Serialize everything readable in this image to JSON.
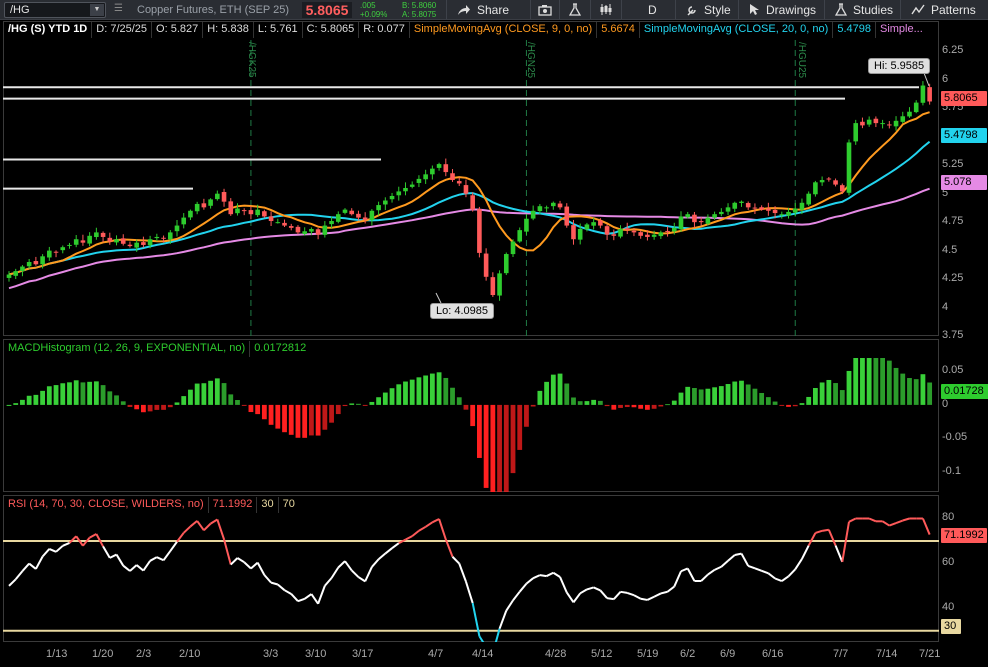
{
  "toolbar": {
    "symbol": "/HG",
    "description": "Copper Futures, ETH (SEP 25)",
    "last": "5.8065",
    "change": ".005",
    "change_pct": "+0.09%",
    "bid": "B: 5.8060",
    "ask": "A: 5.8075",
    "share_label": "Share",
    "aggregation": "D",
    "style_label": "Style",
    "drawings_label": "Drawings",
    "studies_label": "Studies",
    "patterns_label": "Patterns"
  },
  "price_header": {
    "title": "/HG (S) YTD 1D",
    "date": "D: 7/25/25",
    "open": "O: 5.827",
    "high": "H: 5.838",
    "low": "L: 5.761",
    "close": "C: 5.8065",
    "range": "R: 0.077",
    "sma9_label": "SimpleMovingAvg (CLOSE, 9, 0, no)",
    "sma9_value": "5.6674",
    "sma20_label": "SimpleMovingAvg (CLOSE, 20, 0, no)",
    "sma20_value": "5.4798",
    "sma50_label": "Simple..."
  },
  "price_axis": [
    "6.25",
    "6",
    "5.75",
    "5.5",
    "5.25",
    "5",
    "4.75",
    "4.5",
    "4.25",
    "4",
    "3.75"
  ],
  "price_tags": {
    "last": "5.8065",
    "sma20": "5.4798",
    "sma50": "5.078"
  },
  "annotations": {
    "hi": "Hi: 5.9585",
    "lo": "Lo: 4.0985"
  },
  "expiries": [
    "/HGK25",
    "/HGN25",
    "/HGU25"
  ],
  "macd_header": {
    "label": "MACDHistogram (12, 26, 9, EXPONENTIAL, no)",
    "value": "0.0172812"
  },
  "macd_axis": [
    "0.05",
    "0",
    "-0.05",
    "-0.1"
  ],
  "macd_tag": "0.01728",
  "rsi_header": {
    "label": "RSI (14, 70, 30, CLOSE, WILDERS, no)",
    "value": "71.1992",
    "oversold": "30",
    "overbought": "70"
  },
  "rsi_axis": [
    "80",
    "60",
    "40"
  ],
  "rsi_tags": {
    "value": "71.1992",
    "oversold": "30"
  },
  "x_axis": [
    "1/13",
    "1/20",
    "2/3",
    "2/10",
    "3/3",
    "3/10",
    "3/17",
    "4/7",
    "4/14",
    "4/28",
    "5/12",
    "5/19",
    "6/2",
    "6/9",
    "6/16",
    "7/7",
    "7/14",
    "7/21"
  ],
  "colors": {
    "up": "#2ecc2e",
    "down": "#ff5a5a",
    "sma9": "#ff9a1f",
    "sma20": "#22d3ee",
    "sma50": "#e58ae5",
    "rsi_level": "#e8d8a0"
  },
  "chart_data": {
    "type": "line",
    "price": {
      "close": [
        4.29,
        4.32,
        4.36,
        4.4,
        4.38,
        4.45,
        4.5,
        4.49,
        4.53,
        4.55,
        4.6,
        4.57,
        4.63,
        4.66,
        4.62,
        4.58,
        4.6,
        4.56,
        4.54,
        4.57,
        4.55,
        4.6,
        4.62,
        4.61,
        4.66,
        4.72,
        4.79,
        4.85,
        4.91,
        4.88,
        4.95,
        5.0,
        4.93,
        4.82,
        4.87,
        4.85,
        4.82,
        4.86,
        4.8,
        4.76,
        4.75,
        4.72,
        4.7,
        4.66,
        4.67,
        4.69,
        4.64,
        4.72,
        4.76,
        4.82,
        4.86,
        4.82,
        4.79,
        4.77,
        4.85,
        4.9,
        4.94,
        4.98,
        5.02,
        5.05,
        5.08,
        5.13,
        5.17,
        5.22,
        5.26,
        5.19,
        5.12,
        5.09,
        5.0,
        4.86,
        4.48,
        4.27,
        4.11,
        4.3,
        4.47,
        4.58,
        4.68,
        4.78,
        4.85,
        4.89,
        4.88,
        4.92,
        4.88,
        4.72,
        4.6,
        4.69,
        4.73,
        4.75,
        4.72,
        4.64,
        4.63,
        4.69,
        4.68,
        4.66,
        4.63,
        4.62,
        4.64,
        4.66,
        4.67,
        4.7,
        4.8,
        4.82,
        4.75,
        4.75,
        4.79,
        4.82,
        4.84,
        4.88,
        4.92,
        4.93,
        4.88,
        4.87,
        4.86,
        4.85,
        4.83,
        4.82,
        4.84,
        4.87,
        4.92,
        5.0,
        5.1,
        5.12,
        5.13,
        5.08,
        5.02,
        5.45,
        5.62,
        5.6,
        5.65,
        5.62,
        5.62,
        5.6,
        5.64,
        5.68,
        5.72,
        5.8,
        5.95,
        5.81
      ],
      "sma9": 5.6674,
      "sma20": 5.4798,
      "sma50": 5.078,
      "high": 5.9585,
      "low": 4.0985,
      "ylim": [
        3.75,
        6.35
      ]
    },
    "macd": {
      "ylim": [
        -0.13,
        0.07
      ],
      "last": 0.0172812
    },
    "rsi": {
      "ylim": [
        25,
        82
      ],
      "overbought": 70,
      "oversold": 30,
      "last": 71.1992
    }
  }
}
